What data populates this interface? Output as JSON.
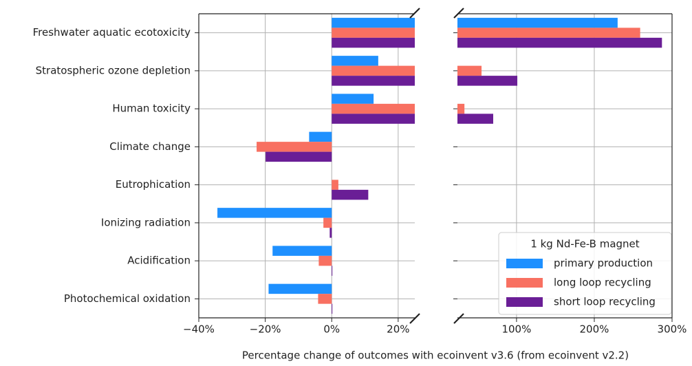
{
  "chart_data": {
    "type": "bar",
    "orientation": "horizontal",
    "xlabel": "Percentage change of outcomes with ecoinvent v3.6 (from ecoinvent v2.2)",
    "categories": [
      "Freshwater aquatic ecotoxicity",
      "Stratospheric ozone depletion",
      "Human toxicity",
      "Climate change",
      "Eutrophication",
      "Ionizing radiation",
      "Acidification",
      "Photochemical oxidation"
    ],
    "series": [
      {
        "name": "primary production",
        "color": "#1e90ff",
        "values": [
          230,
          14,
          12.6,
          -6.8,
          0,
          -34.4,
          -17.8,
          -19
        ]
      },
      {
        "name": "long loop recycling",
        "color": "#f87061",
        "values": [
          259,
          55,
          33,
          -22.6,
          2,
          -2.5,
          -3.9,
          -4.1
        ]
      },
      {
        "name": "short loop recycling",
        "color": "#6a1e96",
        "values": [
          287,
          101,
          70,
          -19.9,
          11,
          -0.6,
          0.2,
          0.2
        ]
      }
    ],
    "xlim": [
      -40,
      25
    ],
    "xticks": [
      {
        "value": -40,
        "label": "−40%"
      },
      {
        "value": -20,
        "label": "−20%"
      },
      {
        "value": 0,
        "label": "0%"
      },
      {
        "value": 20,
        "label": "20%"
      }
    ],
    "x2lim": [
      24,
      300
    ],
    "x2ticks": [
      {
        "value": 100,
        "label": "100%"
      },
      {
        "value": 200,
        "label": "200%"
      },
      {
        "value": 300,
        "label": "300%"
      }
    ],
    "grid": true,
    "legend_title": "1 kg Nd-Fe-B magnet",
    "legend_loc": "lower right"
  }
}
